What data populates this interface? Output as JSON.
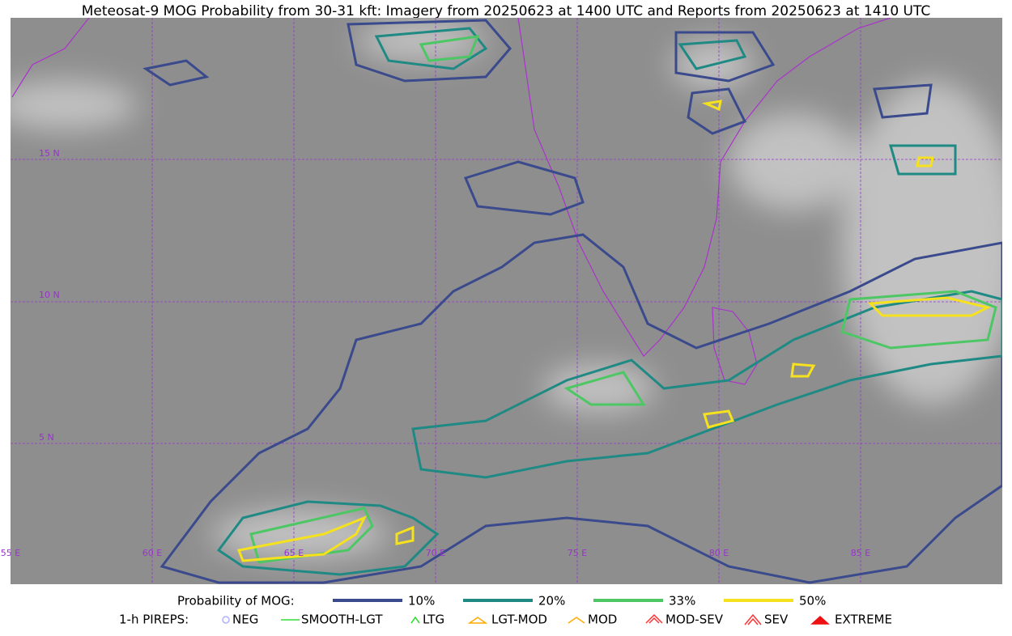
{
  "title": "Meteosat-9 MOG Probability from 30-31 kft: Imagery from 20250623 at 1400 UTC and Reports from 20250623 at 1410 UTC",
  "map": {
    "lat_labels": [
      "15 N",
      "10 N",
      "5 N"
    ],
    "lon_labels": [
      "55 E",
      "60 E",
      "65 E",
      "70 E",
      "75 E",
      "80 E",
      "85 E"
    ]
  },
  "legend": {
    "title": "Probability of MOG:",
    "levels": [
      {
        "label": "10%",
        "color": "#3a4a8c"
      },
      {
        "label": "20%",
        "color": "#1f8a84"
      },
      {
        "label": "33%",
        "color": "#4cc764"
      },
      {
        "label": "50%",
        "color": "#f5e11e"
      }
    ]
  },
  "pireps": {
    "title": "1-h PIREPS:",
    "items": [
      "NEG",
      "SMOOTH-LGT",
      "LTG",
      "LGT-MOD",
      "MOD",
      "MOD-SEV",
      "SEV",
      "EXTREME"
    ]
  }
}
